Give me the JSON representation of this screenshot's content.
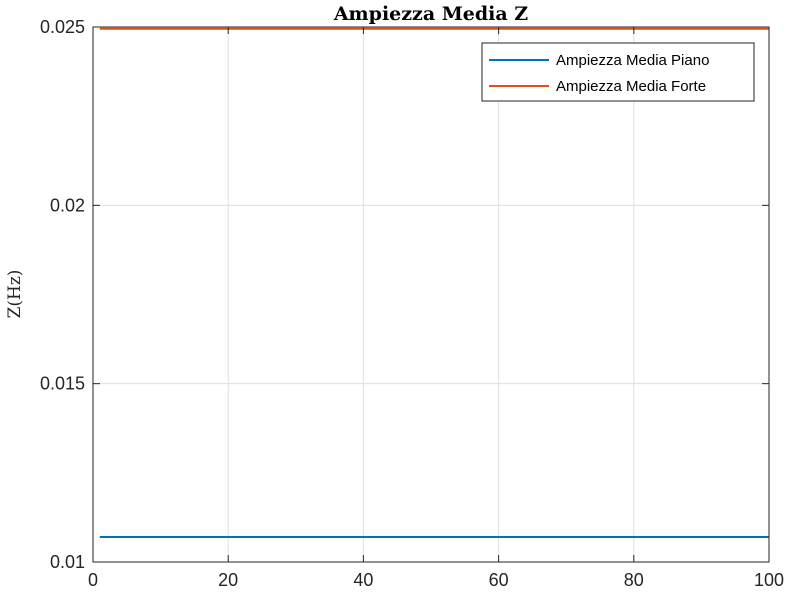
{
  "chart_data": {
    "type": "line",
    "title": "Ampiezza Media Z",
    "xlabel": "",
    "ylabel": "Z(Hz)",
    "xlim": [
      0,
      100
    ],
    "ylim": [
      0.01,
      0.025
    ],
    "x_ticks": [
      0,
      20,
      40,
      60,
      80,
      100
    ],
    "x_tick_labels": [
      "0",
      "20",
      "40",
      "60",
      "80",
      "100"
    ],
    "y_ticks": [
      0.01,
      0.015,
      0.02,
      0.025
    ],
    "y_tick_labels": [
      "0.01",
      "0.015",
      "0.02",
      "0.025"
    ],
    "grid": true,
    "legend_position": "top-right",
    "series": [
      {
        "name": "Ampiezza Media Piano",
        "color": "#0072BD",
        "x": [
          1,
          100
        ],
        "y": [
          0.0107,
          0.0107
        ]
      },
      {
        "name": "Ampiezza Media Forte",
        "color": "#D95319",
        "x": [
          1,
          100
        ],
        "y": [
          0.02495,
          0.02495
        ]
      }
    ]
  }
}
